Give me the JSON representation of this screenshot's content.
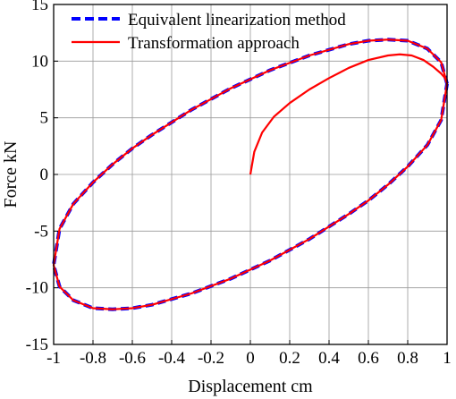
{
  "chart_data": {
    "type": "line",
    "title": "",
    "xlabel": "Displacement cm",
    "ylabel": "Force  kN",
    "xlim": [
      -1,
      1
    ],
    "ylim": [
      -15,
      15
    ],
    "xticks": [
      -1,
      -0.8,
      -0.6,
      -0.4,
      -0.2,
      0,
      0.2,
      0.4,
      0.6,
      0.8,
      1
    ],
    "xtick_labels": [
      "-1",
      "-0.8",
      "-0.6",
      "-0.4",
      "-0.2",
      "0",
      "0.2",
      "0.4",
      "0.6",
      "0.8",
      "1"
    ],
    "yticks": [
      -15,
      -10,
      -5,
      0,
      5,
      10,
      15
    ],
    "ytick_labels": [
      "-15",
      "-10",
      "-5",
      "0",
      "5",
      "10",
      "15"
    ],
    "grid": true,
    "legend_position": "top-left",
    "series": [
      {
        "name": "Equivalent linearization method",
        "style": "dashed",
        "color": "#0000ff",
        "description_shape": "closed ellipse",
        "x": [
          1.0,
          0.97,
          0.9,
          0.8,
          0.7,
          0.6,
          0.5,
          0.3,
          0.1,
          -0.1,
          -0.3,
          -0.5,
          -0.6,
          -0.7,
          -0.8,
          -0.9,
          -0.97,
          -1.0,
          -0.97,
          -0.9,
          -0.8,
          -0.7,
          -0.6,
          -0.5,
          -0.3,
          -0.1,
          0.1,
          0.3,
          0.5,
          0.6,
          0.7,
          0.8,
          0.9,
          0.97,
          1.0
        ],
        "y": [
          8.0,
          9.9,
          11.1,
          11.8,
          11.9,
          11.8,
          11.5,
          10.5,
          9.2,
          7.6,
          5.7,
          3.5,
          2.3,
          0.9,
          -0.7,
          -2.6,
          -4.8,
          -8.0,
          -9.9,
          -11.1,
          -11.8,
          -11.9,
          -11.8,
          -11.5,
          -10.5,
          -9.2,
          -7.6,
          -5.7,
          -3.5,
          -2.3,
          -0.9,
          0.7,
          2.6,
          4.8,
          8.0
        ]
      },
      {
        "name": "Transformation approach",
        "style": "solid",
        "color": "#ff0000",
        "description_shape": "starts at origin, rises to the loop and follows the ellipse",
        "x": [
          0.0,
          0.02,
          0.06,
          0.12,
          0.2,
          0.3,
          0.4,
          0.5,
          0.6,
          0.7,
          0.76,
          0.82,
          0.88,
          0.93,
          0.97,
          0.99,
          1.0,
          0.97,
          0.9,
          0.8,
          0.7,
          0.6,
          0.5,
          0.3,
          0.1,
          -0.1,
          -0.3,
          -0.5,
          -0.6,
          -0.7,
          -0.8,
          -0.9,
          -0.97,
          -1.0,
          -0.97,
          -0.9,
          -0.8,
          -0.7,
          -0.6,
          -0.5,
          -0.3,
          -0.1,
          0.1,
          0.3,
          0.5,
          0.6,
          0.7,
          0.8,
          0.9,
          0.97,
          1.0
        ],
        "y": [
          0.0,
          2.0,
          3.7,
          5.1,
          6.3,
          7.5,
          8.5,
          9.4,
          10.1,
          10.5,
          10.6,
          10.5,
          10.1,
          9.5,
          8.9,
          8.5,
          8.0,
          9.9,
          11.1,
          11.8,
          11.9,
          11.8,
          11.5,
          10.5,
          9.2,
          7.6,
          5.7,
          3.5,
          2.3,
          0.9,
          -0.7,
          -2.6,
          -4.8,
          -8.0,
          -9.9,
          -11.1,
          -11.8,
          -11.9,
          -11.8,
          -11.5,
          -10.5,
          -9.2,
          -7.6,
          -5.7,
          -3.5,
          -2.3,
          -0.9,
          0.7,
          2.6,
          4.8,
          8.0
        ]
      }
    ]
  }
}
